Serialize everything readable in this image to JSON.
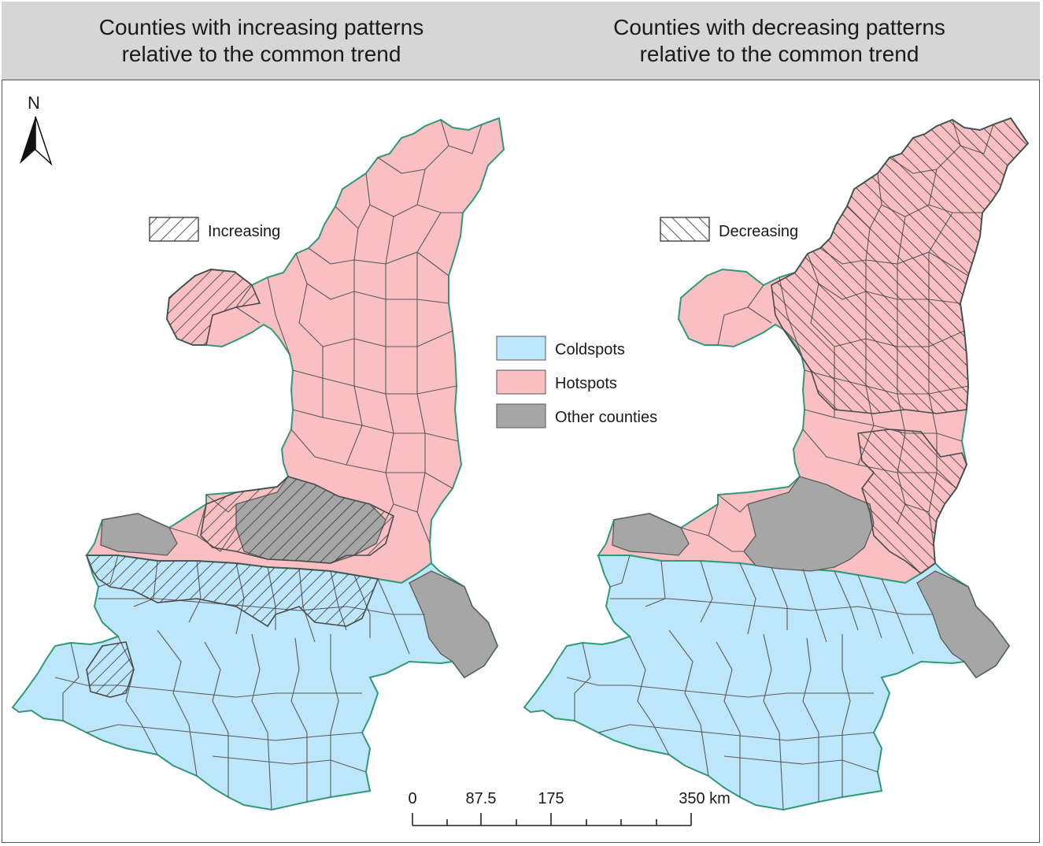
{
  "titles": {
    "left": [
      "Counties with increasing patterns",
      "relative to the common trend"
    ],
    "right": [
      "Counties with decreasing patterns",
      "relative to the common trend"
    ]
  },
  "north_arrow": {
    "label": "N"
  },
  "pattern_legends": {
    "left": {
      "label": "Increasing"
    },
    "right": {
      "label": "Decreasing"
    }
  },
  "legend": {
    "items": [
      {
        "label": "Coldspots",
        "color": "#bee6fa"
      },
      {
        "label": "Hotspots",
        "color": "#f9bfc3"
      },
      {
        "label": "Other counties",
        "color": "#a6a6a6"
      }
    ]
  },
  "scale_bar": {
    "ticks": [
      "0",
      "87.5",
      "175",
      "350 km"
    ]
  },
  "colors": {
    "boundary": "#2e9a78",
    "county_line": "#5a5a5a"
  }
}
